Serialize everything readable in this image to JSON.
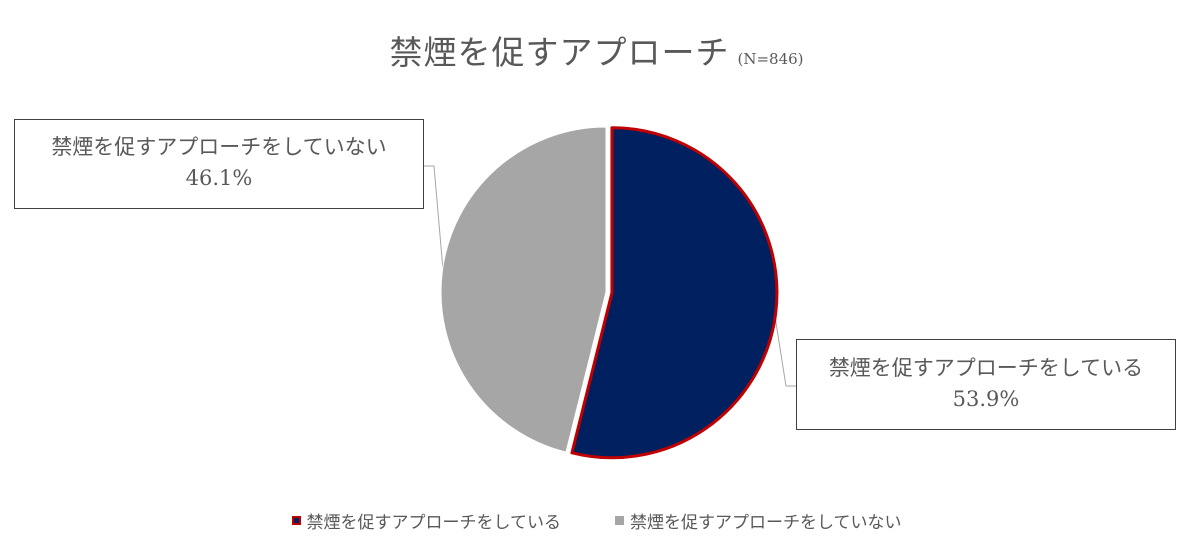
{
  "chart_data": {
    "type": "pie",
    "title": "禁煙を促すアプローチ",
    "subtitle": "(N=846)",
    "slices": [
      {
        "label": "禁煙を促すアプローチをしている",
        "value": 53.9,
        "value_label": "53.9%",
        "color": "#002060",
        "border_color": "#C00000",
        "exploded": true
      },
      {
        "label": "禁煙を促すアプローチをしていない",
        "value": 46.1,
        "value_label": "46.1%",
        "color": "#A6A6A6",
        "border_color": "#FFFFFF",
        "exploded": false
      }
    ],
    "start_angle": "12 o'clock",
    "direction": "clockwise",
    "legend_position": "bottom"
  },
  "colors": {
    "text": "#595959",
    "leader_line": "#A6A6A6",
    "callout_border": "#404040"
  }
}
